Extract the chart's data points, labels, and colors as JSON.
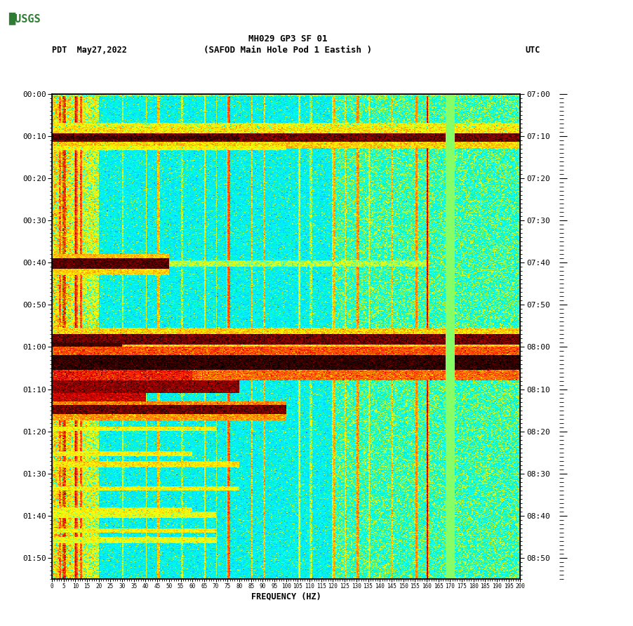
{
  "title_line1": "MH029 GP3 SF 01",
  "title_line2": "(SAFOD Main Hole Pod 1 Eastish )",
  "date_label": "PDT  May27,2022",
  "utc_label": "UTC",
  "xlabel": "FREQUENCY (HZ)",
  "freq_ticks": [
    0,
    5,
    10,
    15,
    20,
    25,
    30,
    35,
    40,
    45,
    50,
    55,
    60,
    65,
    70,
    75,
    80,
    85,
    90,
    95,
    100,
    105,
    110,
    115,
    120,
    125,
    130,
    135,
    140,
    145,
    150,
    155,
    160,
    165,
    170,
    175,
    180,
    185,
    190,
    195,
    200
  ],
  "left_time_labels": [
    "00:00",
    "00:10",
    "00:20",
    "00:30",
    "00:40",
    "00:50",
    "01:00",
    "01:10",
    "01:20",
    "01:30",
    "01:40",
    "01:50"
  ],
  "left_time_positions": [
    0,
    10,
    20,
    30,
    40,
    50,
    60,
    70,
    80,
    90,
    100,
    110
  ],
  "right_time_labels": [
    "07:00",
    "07:10",
    "07:20",
    "07:30",
    "07:40",
    "07:50",
    "08:00",
    "08:10",
    "08:20",
    "08:30",
    "08:40",
    "08:50"
  ],
  "right_time_positions": [
    0,
    10,
    20,
    30,
    40,
    50,
    60,
    70,
    80,
    90,
    100,
    110
  ],
  "colormap_colors": [
    "#000000",
    "#400000",
    "#800000",
    "#cc0000",
    "#ff0000",
    "#ff4400",
    "#ff8800",
    "#ffcc00",
    "#ffff00",
    "#ccff00",
    "#44ff44",
    "#00ffcc",
    "#00ccff",
    "#0088ff",
    "#0044cc",
    "#0022aa",
    "#0000ff",
    "#0000cc",
    "#000088"
  ],
  "time_minutes": 115,
  "seed": 12345
}
